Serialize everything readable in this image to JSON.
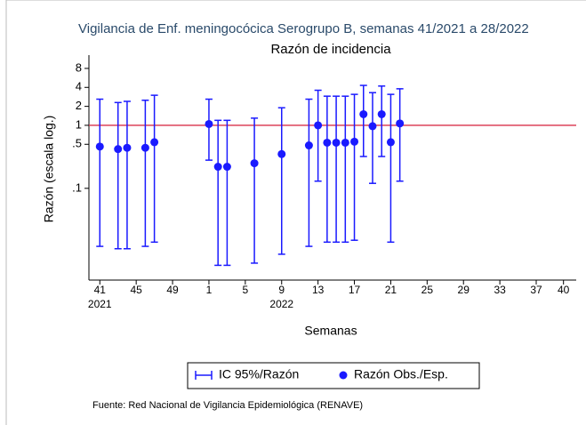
{
  "chart_data": {
    "type": "errorbar",
    "title": "Vigilancia de Enf. meningocócica Serogrupo B, semanas 41/2021 a 28/2022",
    "subtitle": "Razón de incidencia",
    "y_label": "Razón (escala log.)",
    "x_label": "Semanas",
    "source": "Fuente: Red Nacional de Vigilancia Epidemiológica (RENAVE)",
    "log_y": true,
    "color": "#1a1aff",
    "reference_line": {
      "value": 1,
      "color": "#d9304a"
    },
    "legend_error_name": "IC 95%/Razón",
    "x": [
      41,
      43,
      44,
      46,
      47,
      53,
      54,
      55,
      58,
      61,
      64,
      65,
      66,
      67,
      68,
      69,
      70,
      71,
      72,
      73,
      74
    ],
    "series": [
      {
        "name": "Razón Obs./Esp.",
        "values": [
          0.46,
          0.42,
          0.44,
          0.44,
          0.54,
          1.05,
          0.22,
          0.22,
          0.25,
          0.35,
          0.48,
          1.0,
          0.53,
          0.53,
          0.53,
          0.55,
          1.5,
          0.97,
          1.5,
          0.54,
          1.07
        ],
        "lower": [
          0.012,
          0.011,
          0.011,
          0.012,
          0.014,
          0.28,
          0.006,
          0.006,
          0.0065,
          0.009,
          0.012,
          0.13,
          0.014,
          0.014,
          0.014,
          0.015,
          0.32,
          0.12,
          0.32,
          0.014,
          0.13
        ],
        "upper": [
          2.6,
          2.3,
          2.4,
          2.5,
          3.0,
          2.6,
          1.2,
          1.2,
          1.3,
          1.9,
          2.6,
          3.6,
          2.9,
          2.9,
          2.9,
          3.1,
          4.3,
          3.3,
          4.2,
          3.1,
          3.8
        ]
      }
    ],
    "xlim": [
      39.8,
      93.4
    ],
    "xticks": [
      41,
      45,
      49,
      {
        "value": 53,
        "label": "1"
      },
      {
        "value": 57,
        "label": "5"
      },
      {
        "value": 61,
        "label": "9"
      },
      {
        "value": 65,
        "label": "13"
      },
      {
        "value": 69,
        "label": "17"
      },
      {
        "value": 73,
        "label": "21"
      },
      {
        "value": 77,
        "label": "25"
      },
      {
        "value": 81,
        "label": "29"
      },
      {
        "value": 85,
        "label": "33"
      },
      {
        "value": 89,
        "label": "37"
      },
      {
        "value": 92,
        "label": "40"
      }
    ],
    "x_year_labels": [
      {
        "value": 41,
        "label": "2021"
      },
      {
        "value": 61,
        "label": "2022"
      }
    ],
    "ylim": [
      0.0035,
      13
    ],
    "yticks": [
      8,
      4,
      2,
      1,
      {
        "value": 0.5,
        "label": ".5"
      },
      {
        "value": 0.1,
        "label": ".1"
      }
    ]
  }
}
